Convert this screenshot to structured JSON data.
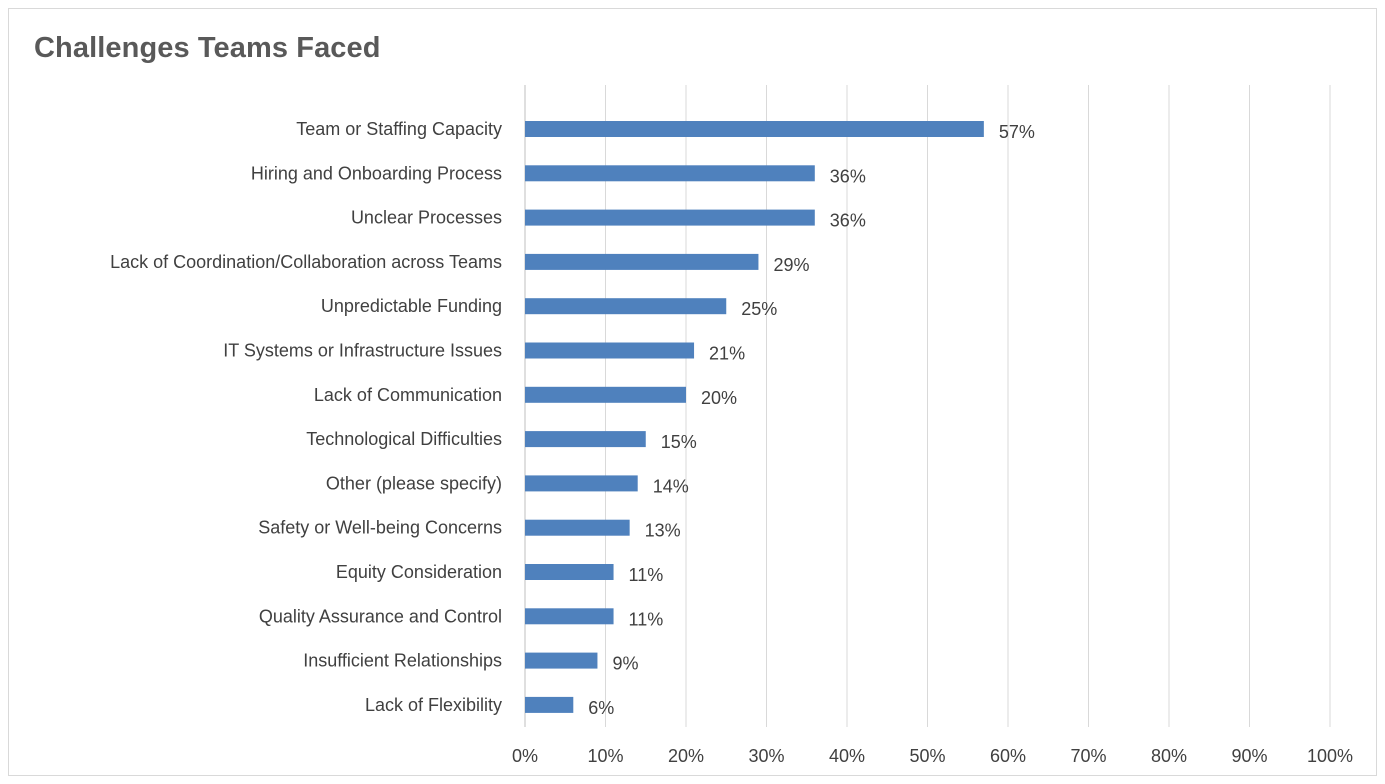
{
  "chart_data": {
    "type": "bar",
    "orientation": "horizontal",
    "title": "Challenges Teams Faced",
    "categories": [
      "Team or Staffing Capacity",
      "Hiring and Onboarding Process",
      "Unclear Processes",
      "Lack of Coordination/Collaboration across Teams",
      "Unpredictable Funding",
      "IT Systems or Infrastructure Issues",
      "Lack of Communication",
      "Technological Difficulties",
      "Other (please specify)",
      "Safety or Well-being Concerns",
      "Equity Consideration",
      "Quality Assurance and Control",
      "Insufficient Relationships",
      "Lack of Flexibility"
    ],
    "values": [
      57,
      36,
      36,
      29,
      25,
      21,
      20,
      15,
      14,
      13,
      11,
      11,
      9,
      6
    ],
    "data_labels": [
      "57%",
      "36%",
      "36%",
      "29%",
      "25%",
      "21%",
      "20%",
      "15%",
      "14%",
      "13%",
      "11%",
      "11%",
      "9%",
      "6%"
    ],
    "xlim": [
      0,
      100
    ],
    "x_ticks": [
      "0%",
      "10%",
      "20%",
      "30%",
      "40%",
      "50%",
      "60%",
      "70%",
      "80%",
      "90%",
      "100%"
    ],
    "grid": "vertical",
    "legend": "none",
    "bar_color": "#4f81bd",
    "grid_color": "#d9d9d9"
  }
}
